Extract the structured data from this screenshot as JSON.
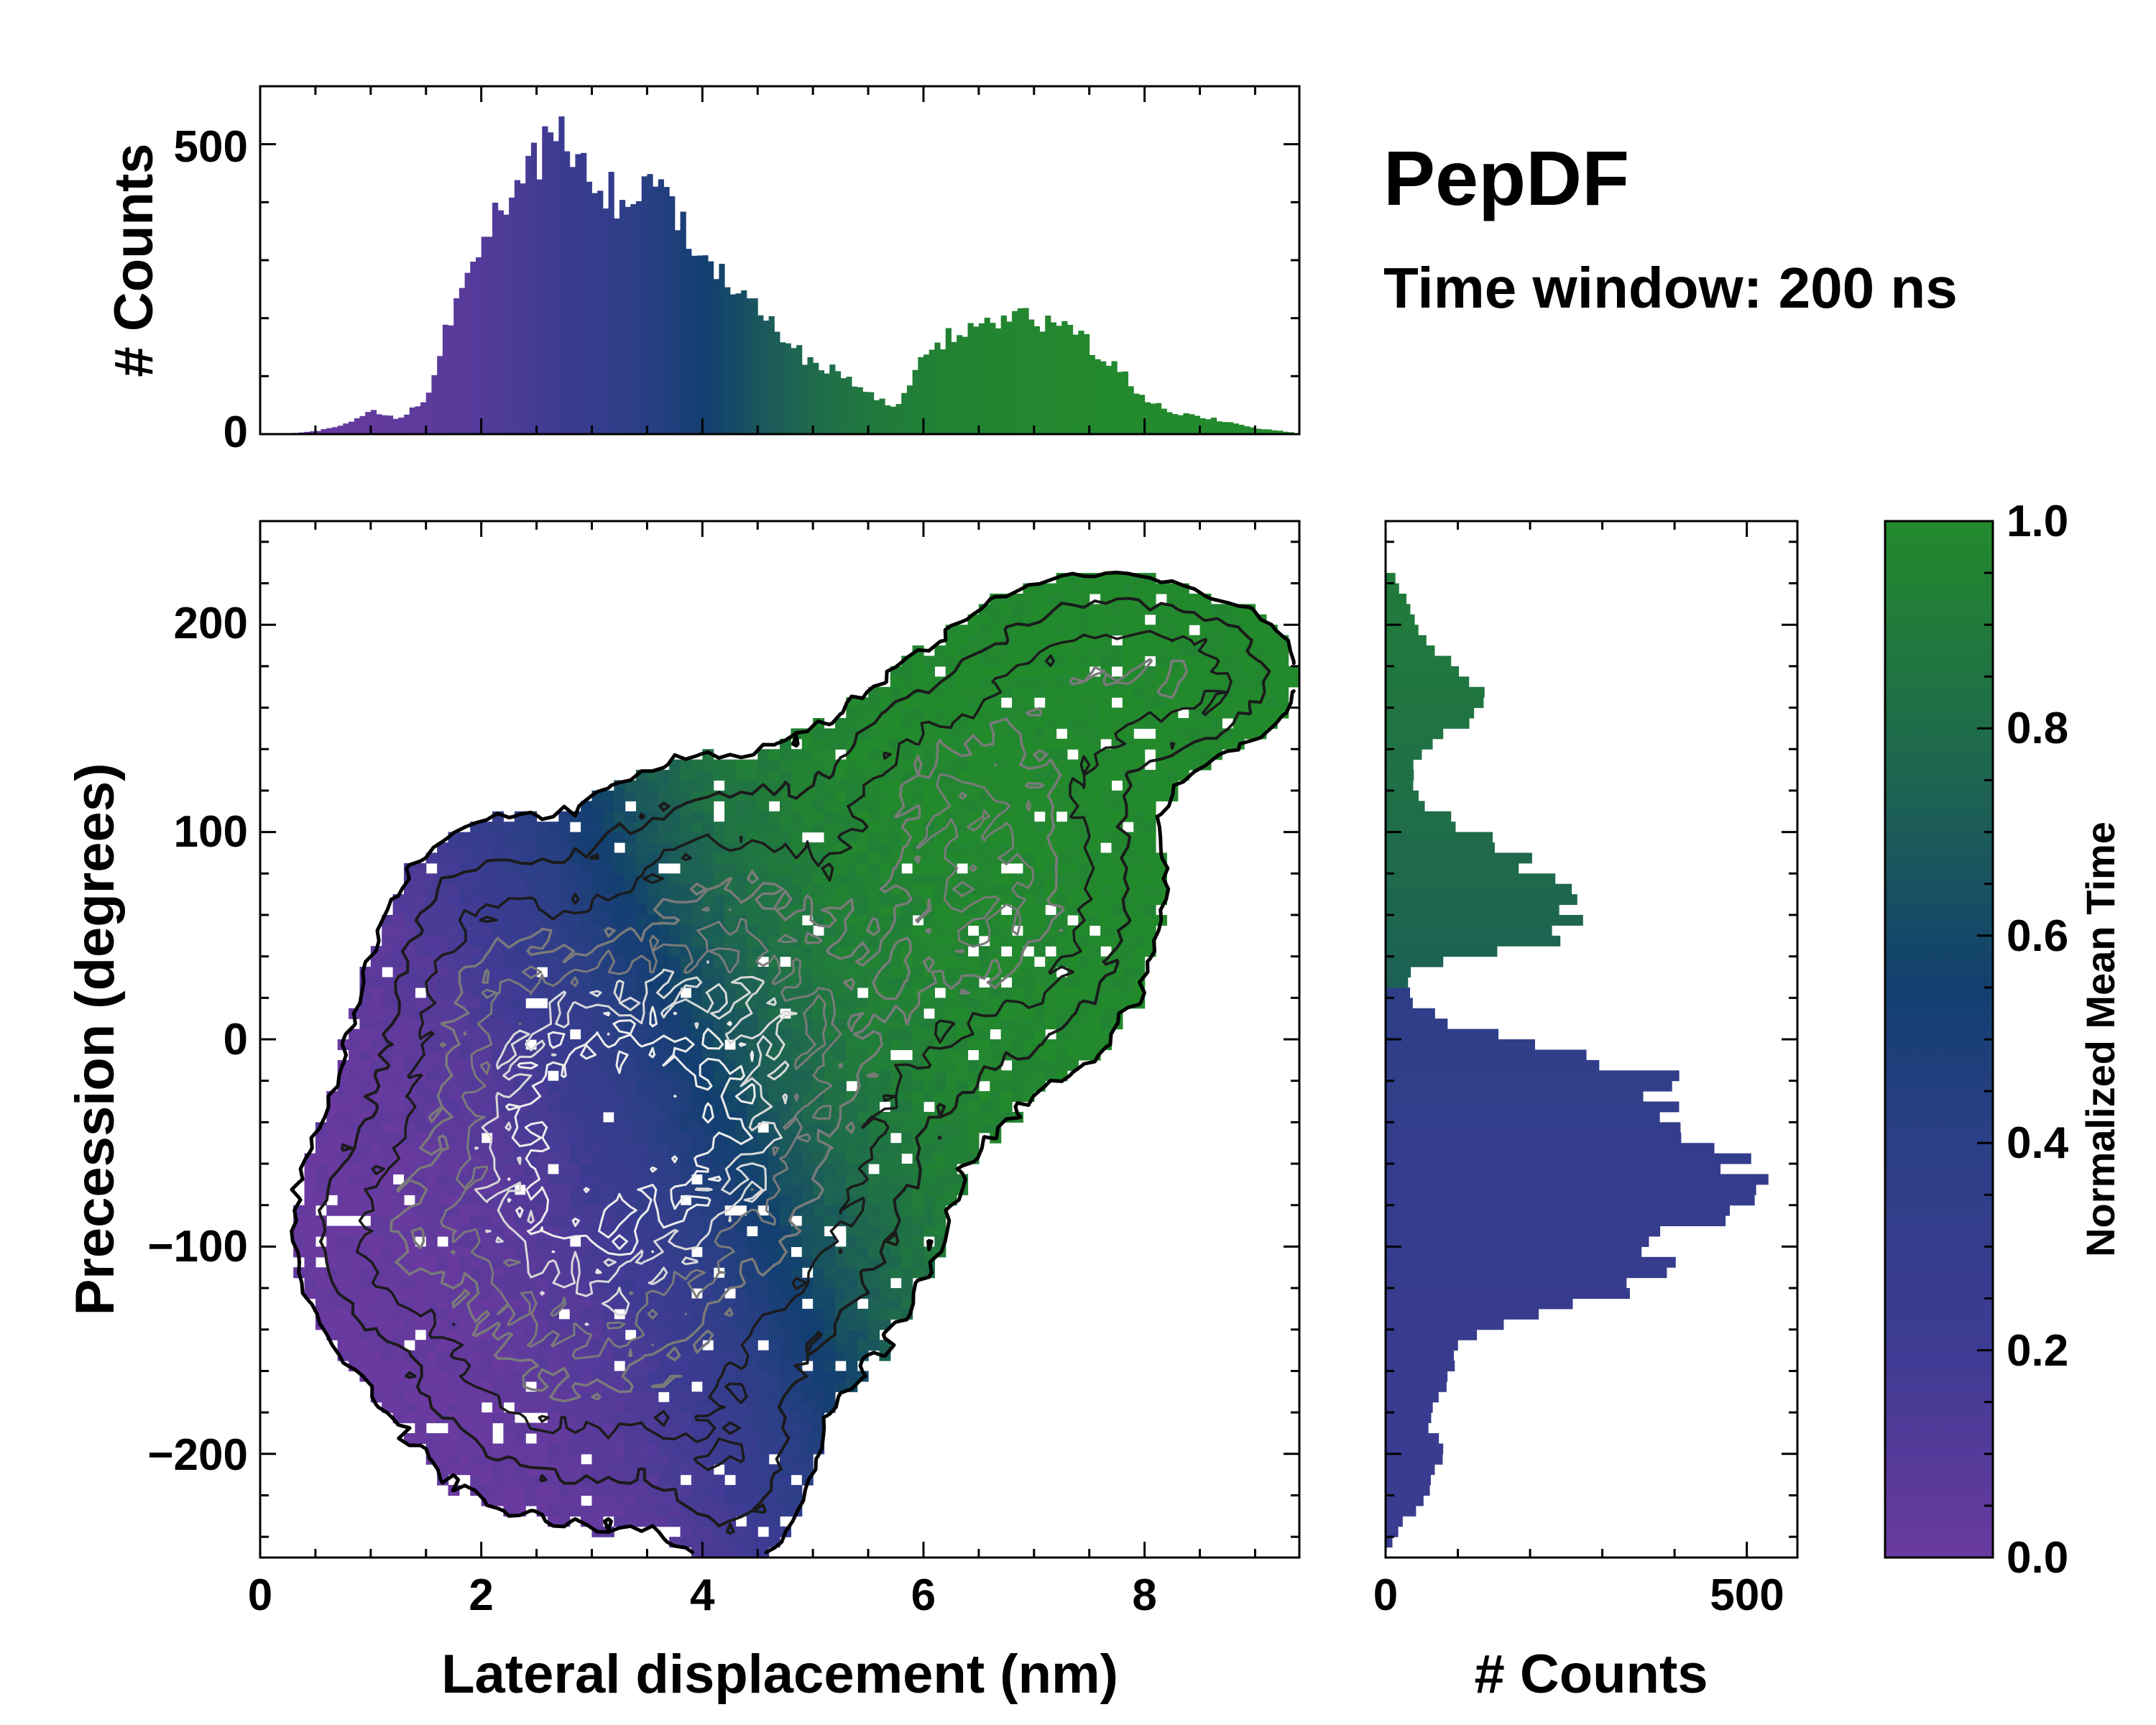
{
  "title": "PepDF",
  "subtitle": "Time window: 200 ns",
  "colors": {
    "cmap": [
      "#6a3aa0",
      "#3e3b93",
      "#2b3f86",
      "#123f70",
      "#1e6551",
      "#238a2c"
    ],
    "contour_dark": "#1b1b1b",
    "contour_mid": "#7a7a7a",
    "contour_light": "#d8d8d8"
  },
  "chart_data": [
    {
      "id": "top-histogram",
      "type": "bar",
      "xlabel": "",
      "ylabel": "# Counts",
      "xlim": [
        0,
        9.4
      ],
      "ylim": [
        0,
        600
      ],
      "yticks": [
        0,
        500
      ],
      "ytick_labels": [
        "0",
        "500"
      ],
      "bin_centers_nm": [
        0.5,
        0.75,
        1.0,
        1.25,
        1.5,
        1.75,
        2.0,
        2.25,
        2.5,
        2.75,
        3.0,
        3.25,
        3.5,
        3.75,
        4.0,
        4.25,
        4.5,
        4.75,
        5.0,
        5.25,
        5.5,
        5.75,
        6.0,
        6.25,
        6.5,
        6.75,
        7.0,
        7.25,
        7.5,
        7.75,
        8.0,
        8.25,
        8.5,
        8.75,
        9.0,
        9.25
      ],
      "counts": [
        5,
        15,
        40,
        25,
        60,
        220,
        340,
        390,
        470,
        520,
        440,
        400,
        430,
        390,
        320,
        270,
        220,
        160,
        120,
        105,
        70,
        45,
        130,
        175,
        185,
        195,
        200,
        185,
        155,
        115,
        60,
        38,
        30,
        22,
        10,
        5
      ]
    },
    {
      "id": "right-histogram",
      "type": "bar",
      "orientation": "horizontal",
      "xlabel": "# Counts",
      "ylabel": "",
      "xlim": [
        0,
        570
      ],
      "ylim": [
        -250,
        250
      ],
      "xticks": [
        0,
        500
      ],
      "xtick_labels": [
        "0",
        "500"
      ],
      "bin_centers_deg": [
        -245,
        -235,
        -225,
        -215,
        -205,
        -195,
        -185,
        -175,
        -165,
        -155,
        -145,
        -135,
        -125,
        -115,
        -105,
        -95,
        -85,
        -75,
        -65,
        -55,
        -45,
        -35,
        -25,
        -15,
        -5,
        5,
        15,
        25,
        35,
        45,
        55,
        65,
        75,
        85,
        95,
        105,
        115,
        125,
        135,
        145,
        155,
        165,
        175,
        185,
        195,
        205,
        215,
        225
      ],
      "counts": [
        5,
        20,
        45,
        60,
        75,
        72,
        60,
        70,
        85,
        95,
        110,
        190,
        300,
        360,
        400,
        410,
        440,
        490,
        500,
        470,
        380,
        360,
        405,
        350,
        240,
        110,
        45,
        30,
        35,
        210,
        250,
        265,
        240,
        195,
        145,
        95,
        50,
        35,
        40,
        75,
        115,
        130,
        105,
        75,
        55,
        40,
        25,
        8
      ]
    },
    {
      "id": "main-2d-histogram",
      "type": "heatmap",
      "xlabel": "Lateral displacement (nm)",
      "ylabel": "Precession (degrees)",
      "xlim": [
        0,
        9.4
      ],
      "ylim": [
        -250,
        250
      ],
      "xticks": [
        0,
        2,
        4,
        6,
        8
      ],
      "xtick_labels": [
        "0",
        "2",
        "4",
        "6",
        "8"
      ],
      "yticks": [
        -200,
        -100,
        0,
        100,
        200
      ],
      "ytick_labels": [
        "−200",
        "−100",
        "0",
        "100",
        "200"
      ],
      "colorbar": {
        "label": "Normalized Mean Time",
        "range": [
          0,
          1
        ],
        "ticks": [
          0.0,
          0.2,
          0.4,
          0.6,
          0.8,
          1.0
        ],
        "tick_labels": [
          "0.0",
          "0.2",
          "0.4",
          "0.6",
          "0.8",
          "1.0"
        ]
      },
      "density_blobs": [
        {
          "x": 2.6,
          "y": -60,
          "sx": 1.0,
          "sy": 70,
          "w": 1.0
        },
        {
          "x": 3.5,
          "y": -25,
          "sx": 0.9,
          "sy": 55,
          "w": 0.75
        },
        {
          "x": 3.0,
          "y": -160,
          "sx": 1.0,
          "sy": 45,
          "w": 0.45
        },
        {
          "x": 1.1,
          "y": -95,
          "sx": 0.5,
          "sy": 30,
          "w": 0.35
        },
        {
          "x": 4.7,
          "y": -70,
          "sx": 0.9,
          "sy": 60,
          "w": 0.55
        },
        {
          "x": 5.1,
          "y": 15,
          "sx": 0.9,
          "sy": 45,
          "w": 0.45
        },
        {
          "x": 4.2,
          "y": 75,
          "sx": 0.8,
          "sy": 40,
          "w": 0.45
        },
        {
          "x": 2.0,
          "y": 40,
          "sx": 0.5,
          "sy": 40,
          "w": 0.35
        },
        {
          "x": 6.7,
          "y": 70,
          "sx": 0.8,
          "sy": 50,
          "w": 0.85
        },
        {
          "x": 7.6,
          "y": 175,
          "sx": 0.8,
          "sy": 30,
          "w": 0.6
        },
        {
          "x": 8.6,
          "y": 175,
          "sx": 0.5,
          "sy": 20,
          "w": 0.35
        },
        {
          "x": 6.2,
          "y": 125,
          "sx": 0.7,
          "sy": 30,
          "w": 0.45
        },
        {
          "x": 4.3,
          "y": -210,
          "sx": 0.4,
          "sy": 30,
          "w": 0.35
        }
      ],
      "time_model": {
        "x0": 2.2,
        "y0": -20,
        "scale": 5.5,
        "yweight": 0.008
      }
    }
  ]
}
